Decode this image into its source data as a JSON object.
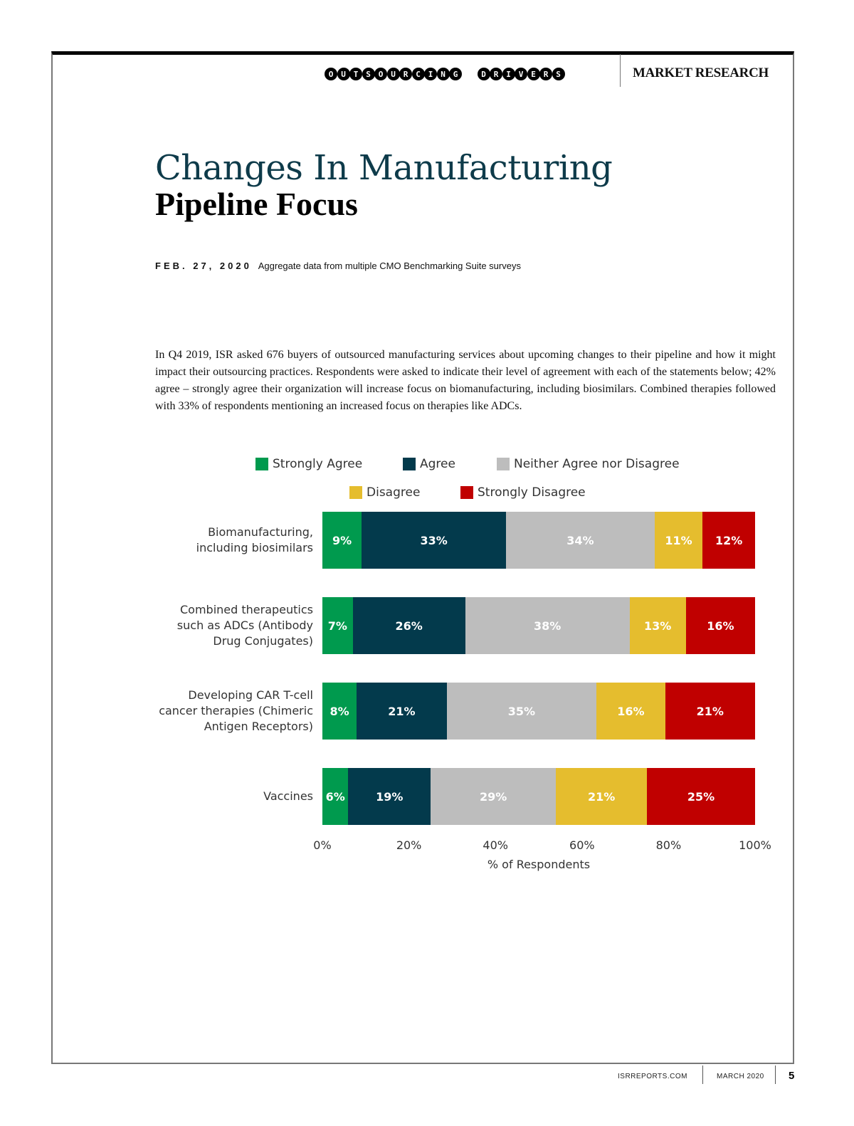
{
  "header": {
    "brand_word1": "OUTSOURCING",
    "brand_word2": "DRIVERS",
    "section": "MARKET RESEARCH"
  },
  "title": {
    "line1": "Changes In Manufacturing",
    "line2": "Pipeline Focus"
  },
  "meta": {
    "date": "FEB. 27, 2020",
    "source": "Aggregate data from multiple CMO Benchmarking Suite surveys"
  },
  "body_text": "In Q4 2019, ISR asked 676 buyers of outsourced manufacturing services about upcoming changes to their pipeline and how it might impact their outsourcing practices. Respondents were asked to indicate their level of agreement with each of the statements below; 42% agree – strongly agree their organization will increase focus on biomanufacturing, including biosimilars. Combined therapies followed with 33% of respondents mentioning an increased focus on therapies like ADCs.",
  "chart_data": {
    "type": "bar",
    "orientation": "horizontal",
    "stacked": true,
    "title": "",
    "xlabel": "% of Respondents",
    "ylabel": "",
    "xlim": [
      0,
      100
    ],
    "x_ticks": [
      "0%",
      "20%",
      "40%",
      "60%",
      "80%",
      "100%"
    ],
    "legend_position": "top",
    "categories": [
      "Biomanufacturing, including biosimilars",
      "Combined therapeutics such as ADCs (Antibody Drug Conjugates)",
      "Developing CAR T-cell cancer therapies (Chimeric Antigen Receptors)",
      "Vaccines"
    ],
    "category_lines": [
      [
        "Biomanufacturing,",
        "including biosimilars"
      ],
      [
        "Combined therapeutics",
        "such as ADCs (Antibody",
        "Drug Conjugates)"
      ],
      [
        "Developing CAR T-cell",
        "cancer therapies (Chimeric",
        "Antigen Receptors)"
      ],
      [
        "Vaccines"
      ]
    ],
    "series": [
      {
        "name": "Strongly Agree",
        "color": "#009a4e",
        "values": [
          9,
          7,
          8,
          6
        ]
      },
      {
        "name": "Agree",
        "color": "#033a4c",
        "values": [
          33,
          26,
          21,
          19
        ]
      },
      {
        "name": "Neither Agree nor Disagree",
        "color": "#bdbdbd",
        "values": [
          34,
          38,
          35,
          29
        ]
      },
      {
        "name": "Disagree",
        "color": "#e5bd2e",
        "values": [
          11,
          13,
          16,
          21
        ]
      },
      {
        "name": "Strongly Disagree",
        "color": "#c00000",
        "values": [
          12,
          16,
          21,
          25
        ]
      }
    ]
  },
  "footer": {
    "site": "ISRREPORTS.COM",
    "issue": "MARCH 2020",
    "page": "5"
  }
}
